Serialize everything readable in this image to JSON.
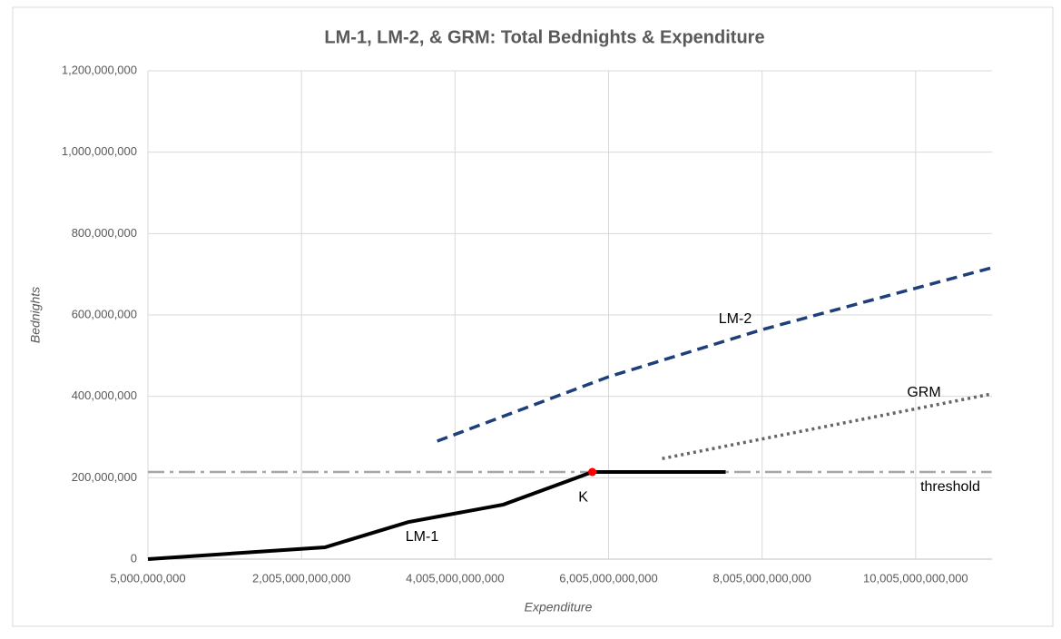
{
  "chart_data": {
    "type": "line",
    "title": "LM-1, LM-2, & GRM: Total Bednights & Expenditure",
    "xlabel": "Expenditure",
    "ylabel": "Bednights",
    "xlim": [
      5000000000,
      11000000000000
    ],
    "ylim": [
      0,
      1200000000
    ],
    "xticks": [
      {
        "value": 5000000000,
        "label": "5,000,000,000"
      },
      {
        "value": 2005000000000,
        "label": "2,005,000,000,000"
      },
      {
        "value": 4005000000000,
        "label": "4,005,000,000,000"
      },
      {
        "value": 6005000000000,
        "label": "6,005,000,000,000"
      },
      {
        "value": 8005000000000,
        "label": "8,005,000,000,000"
      },
      {
        "value": 10005000000000,
        "label": "10,005,000,000,000"
      }
    ],
    "yticks": [
      0,
      {
        "value": 200000000,
        "label": "200,000,000"
      },
      {
        "value": 400000000,
        "label": "400,000,000"
      },
      {
        "value": 600000000,
        "label": "600,000,000"
      },
      {
        "value": 800000000,
        "label": "800,000,000"
      },
      {
        "value": 1000000000,
        "label": "1,000,000,000"
      },
      {
        "value": 1200000000,
        "label": "1,200,000,000"
      }
    ],
    "grid": true,
    "series": [
      {
        "name": "LM-1",
        "color": "#000000",
        "style": "solid",
        "x": [
          5000000000,
          2309000000000,
          3395000000000,
          4635000000000,
          5793000000000,
          7530000000000
        ],
        "values": [
          0,
          29000000,
          91000000,
          134000000,
          214000000,
          214000000
        ]
      },
      {
        "name": "LM-2",
        "color": "#1f3f7a",
        "style": "dashed",
        "x": [
          3773000000000,
          6005000000000,
          8005000000000,
          10995000000000
        ],
        "values": [
          290000000,
          448000000,
          564000000,
          716000000
        ]
      },
      {
        "name": "GRM",
        "color": "#666666",
        "style": "dotted",
        "x": [
          6703000000000,
          10995000000000
        ],
        "values": [
          247000000,
          406000000
        ]
      },
      {
        "name": "threshold",
        "color": "#a6a6a6",
        "style": "dashdot",
        "x": [
          5000000000,
          10995000000000
        ],
        "values": [
          214000000,
          214000000
        ]
      }
    ],
    "point": {
      "label": "K",
      "x": 5793000000000,
      "y": 214000000,
      "color": "#ff0000"
    }
  }
}
